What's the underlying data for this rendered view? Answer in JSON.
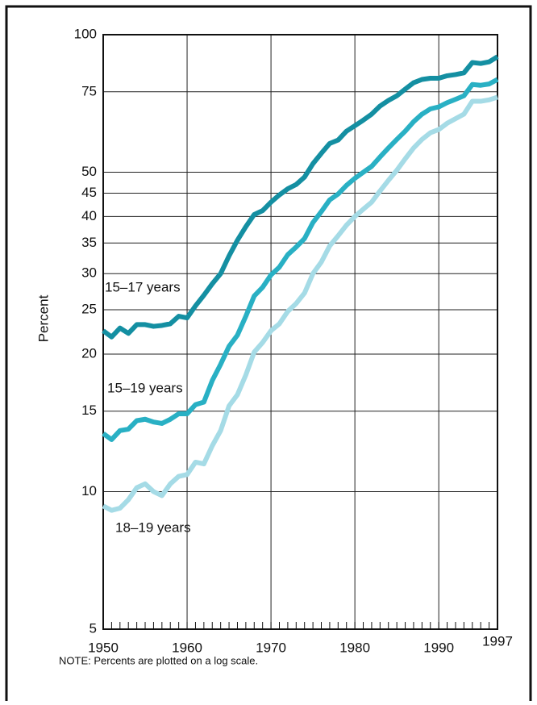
{
  "chart_data": {
    "type": "line",
    "y_label": "Percent",
    "note": "NOTE: Percents are plotted on a log scale.",
    "log_scale": true,
    "grid": true,
    "x": [
      1950,
      1951,
      1952,
      1953,
      1954,
      1955,
      1956,
      1957,
      1958,
      1959,
      1960,
      1961,
      1962,
      1963,
      1964,
      1965,
      1966,
      1967,
      1968,
      1969,
      1970,
      1971,
      1972,
      1973,
      1974,
      1975,
      1976,
      1977,
      1978,
      1979,
      1980,
      1981,
      1982,
      1983,
      1984,
      1985,
      1986,
      1987,
      1988,
      1989,
      1990,
      1991,
      1992,
      1993,
      1994,
      1995,
      1996,
      1997
    ],
    "xlim": [
      1950,
      1997
    ],
    "xticks": [
      1950,
      1960,
      1970,
      1980,
      1990,
      1997
    ],
    "ylim": [
      5,
      100
    ],
    "yticks": [
      5,
      10,
      15,
      20,
      25,
      30,
      35,
      40,
      45,
      50,
      75,
      100
    ],
    "series": [
      {
        "name": "15–17 years",
        "color": "#148fa2",
        "values": [
          22.5,
          21.8,
          22.8,
          22.2,
          23.2,
          23.2,
          23.0,
          23.1,
          23.3,
          24.2,
          24.0,
          25.5,
          26.9,
          28.5,
          30.0,
          32.8,
          35.5,
          38.0,
          40.4,
          41.2,
          43.0,
          44.6,
          46.0,
          47.0,
          48.8,
          52.2,
          55.0,
          57.8,
          58.8,
          61.5,
          63.2,
          65.0,
          67.0,
          69.8,
          71.8,
          73.5,
          76.0,
          78.5,
          79.8,
          80.3,
          80.3,
          81.3,
          81.8,
          82.5,
          86.9,
          86.5,
          87.2,
          89.5
        ]
      },
      {
        "name": "15–19 years",
        "color": "#29b0c4",
        "values": [
          13.4,
          13.0,
          13.6,
          13.7,
          14.3,
          14.4,
          14.2,
          14.1,
          14.4,
          14.8,
          14.8,
          15.5,
          15.7,
          17.5,
          19.0,
          20.8,
          22.0,
          24.2,
          26.8,
          28.0,
          29.8,
          31.0,
          33.0,
          34.3,
          35.8,
          38.8,
          41.0,
          43.5,
          44.8,
          46.8,
          48.5,
          50.0,
          51.5,
          54.0,
          56.5,
          59.0,
          61.5,
          64.5,
          67.0,
          68.8,
          69.5,
          71.0,
          72.2,
          73.5,
          77.8,
          77.5,
          78.0,
          79.8
        ]
      },
      {
        "name": "18–19 years",
        "color": "#a5dbe6",
        "values": [
          9.3,
          9.1,
          9.2,
          9.6,
          10.2,
          10.4,
          10.0,
          9.8,
          10.4,
          10.8,
          10.9,
          11.6,
          11.5,
          12.6,
          13.6,
          15.4,
          16.3,
          18.0,
          20.2,
          21.2,
          22.5,
          23.3,
          24.8,
          25.8,
          27.2,
          30.0,
          31.8,
          34.5,
          36.3,
          38.3,
          40.0,
          41.5,
          43.0,
          45.5,
          48.0,
          50.5,
          53.5,
          56.5,
          59.0,
          61.0,
          62.0,
          64.0,
          65.5,
          67.0,
          71.5,
          71.5,
          72.0,
          73.0
        ]
      }
    ]
  }
}
